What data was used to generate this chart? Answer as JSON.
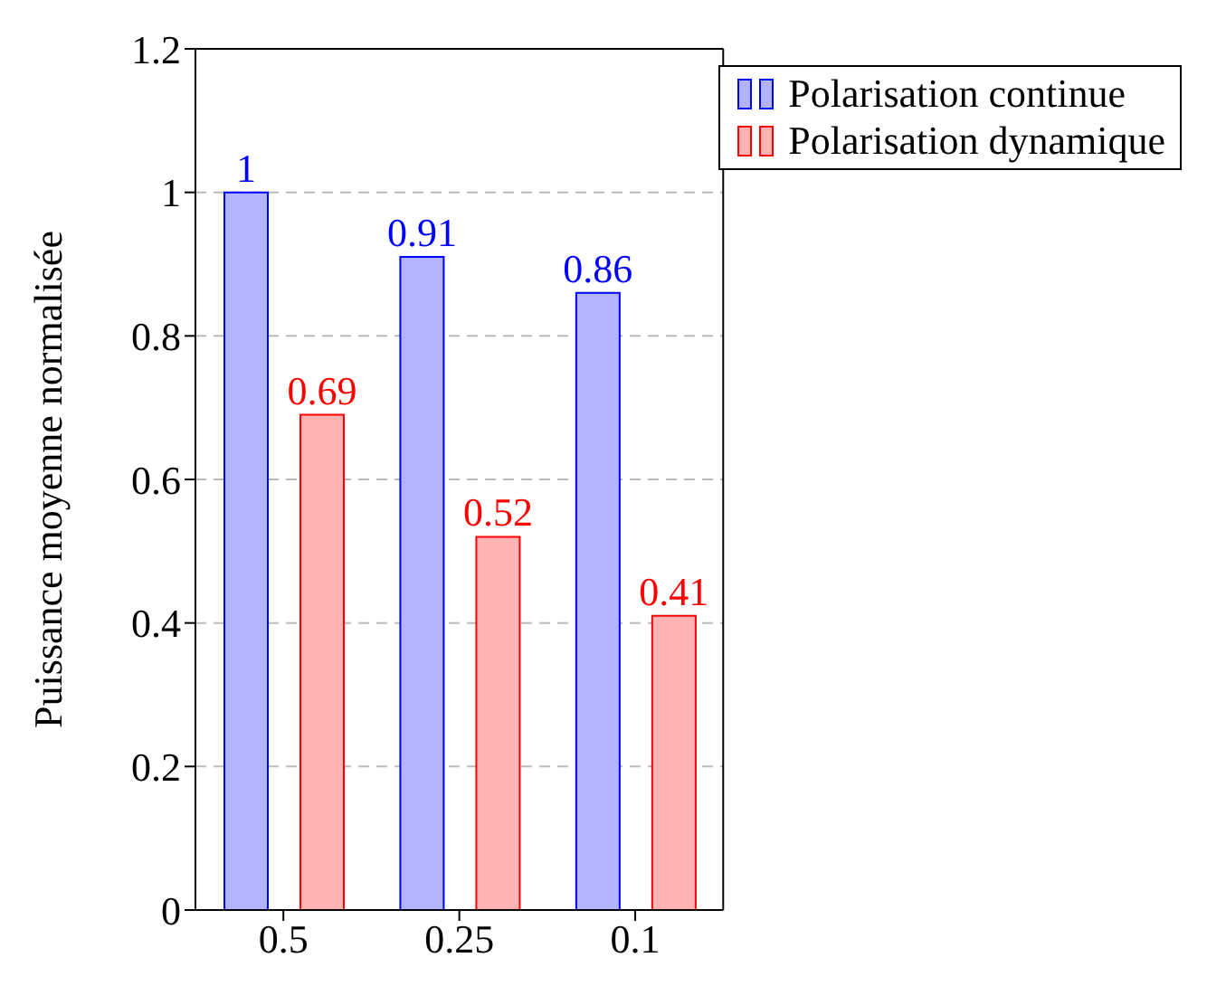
{
  "chart_data": {
    "type": "bar",
    "ylabel": "Puissance moyenne normalisée",
    "categories": [
      "0.5",
      "0.25",
      "0.1"
    ],
    "series": [
      {
        "name": "Polarisation continue",
        "color": "#b3b3ff",
        "values": [
          1,
          0.91,
          0.86
        ]
      },
      {
        "name": "Polarisation dynamique",
        "color": "#ffb3b3",
        "values": [
          0.69,
          0.52,
          0.41
        ]
      }
    ],
    "ylim": [
      0,
      1.2
    ],
    "yticks": [
      0,
      0.2,
      0.4,
      0.6,
      0.8,
      1,
      1.2
    ],
    "grid": "y",
    "legend": "top right",
    "data_labels": true
  }
}
